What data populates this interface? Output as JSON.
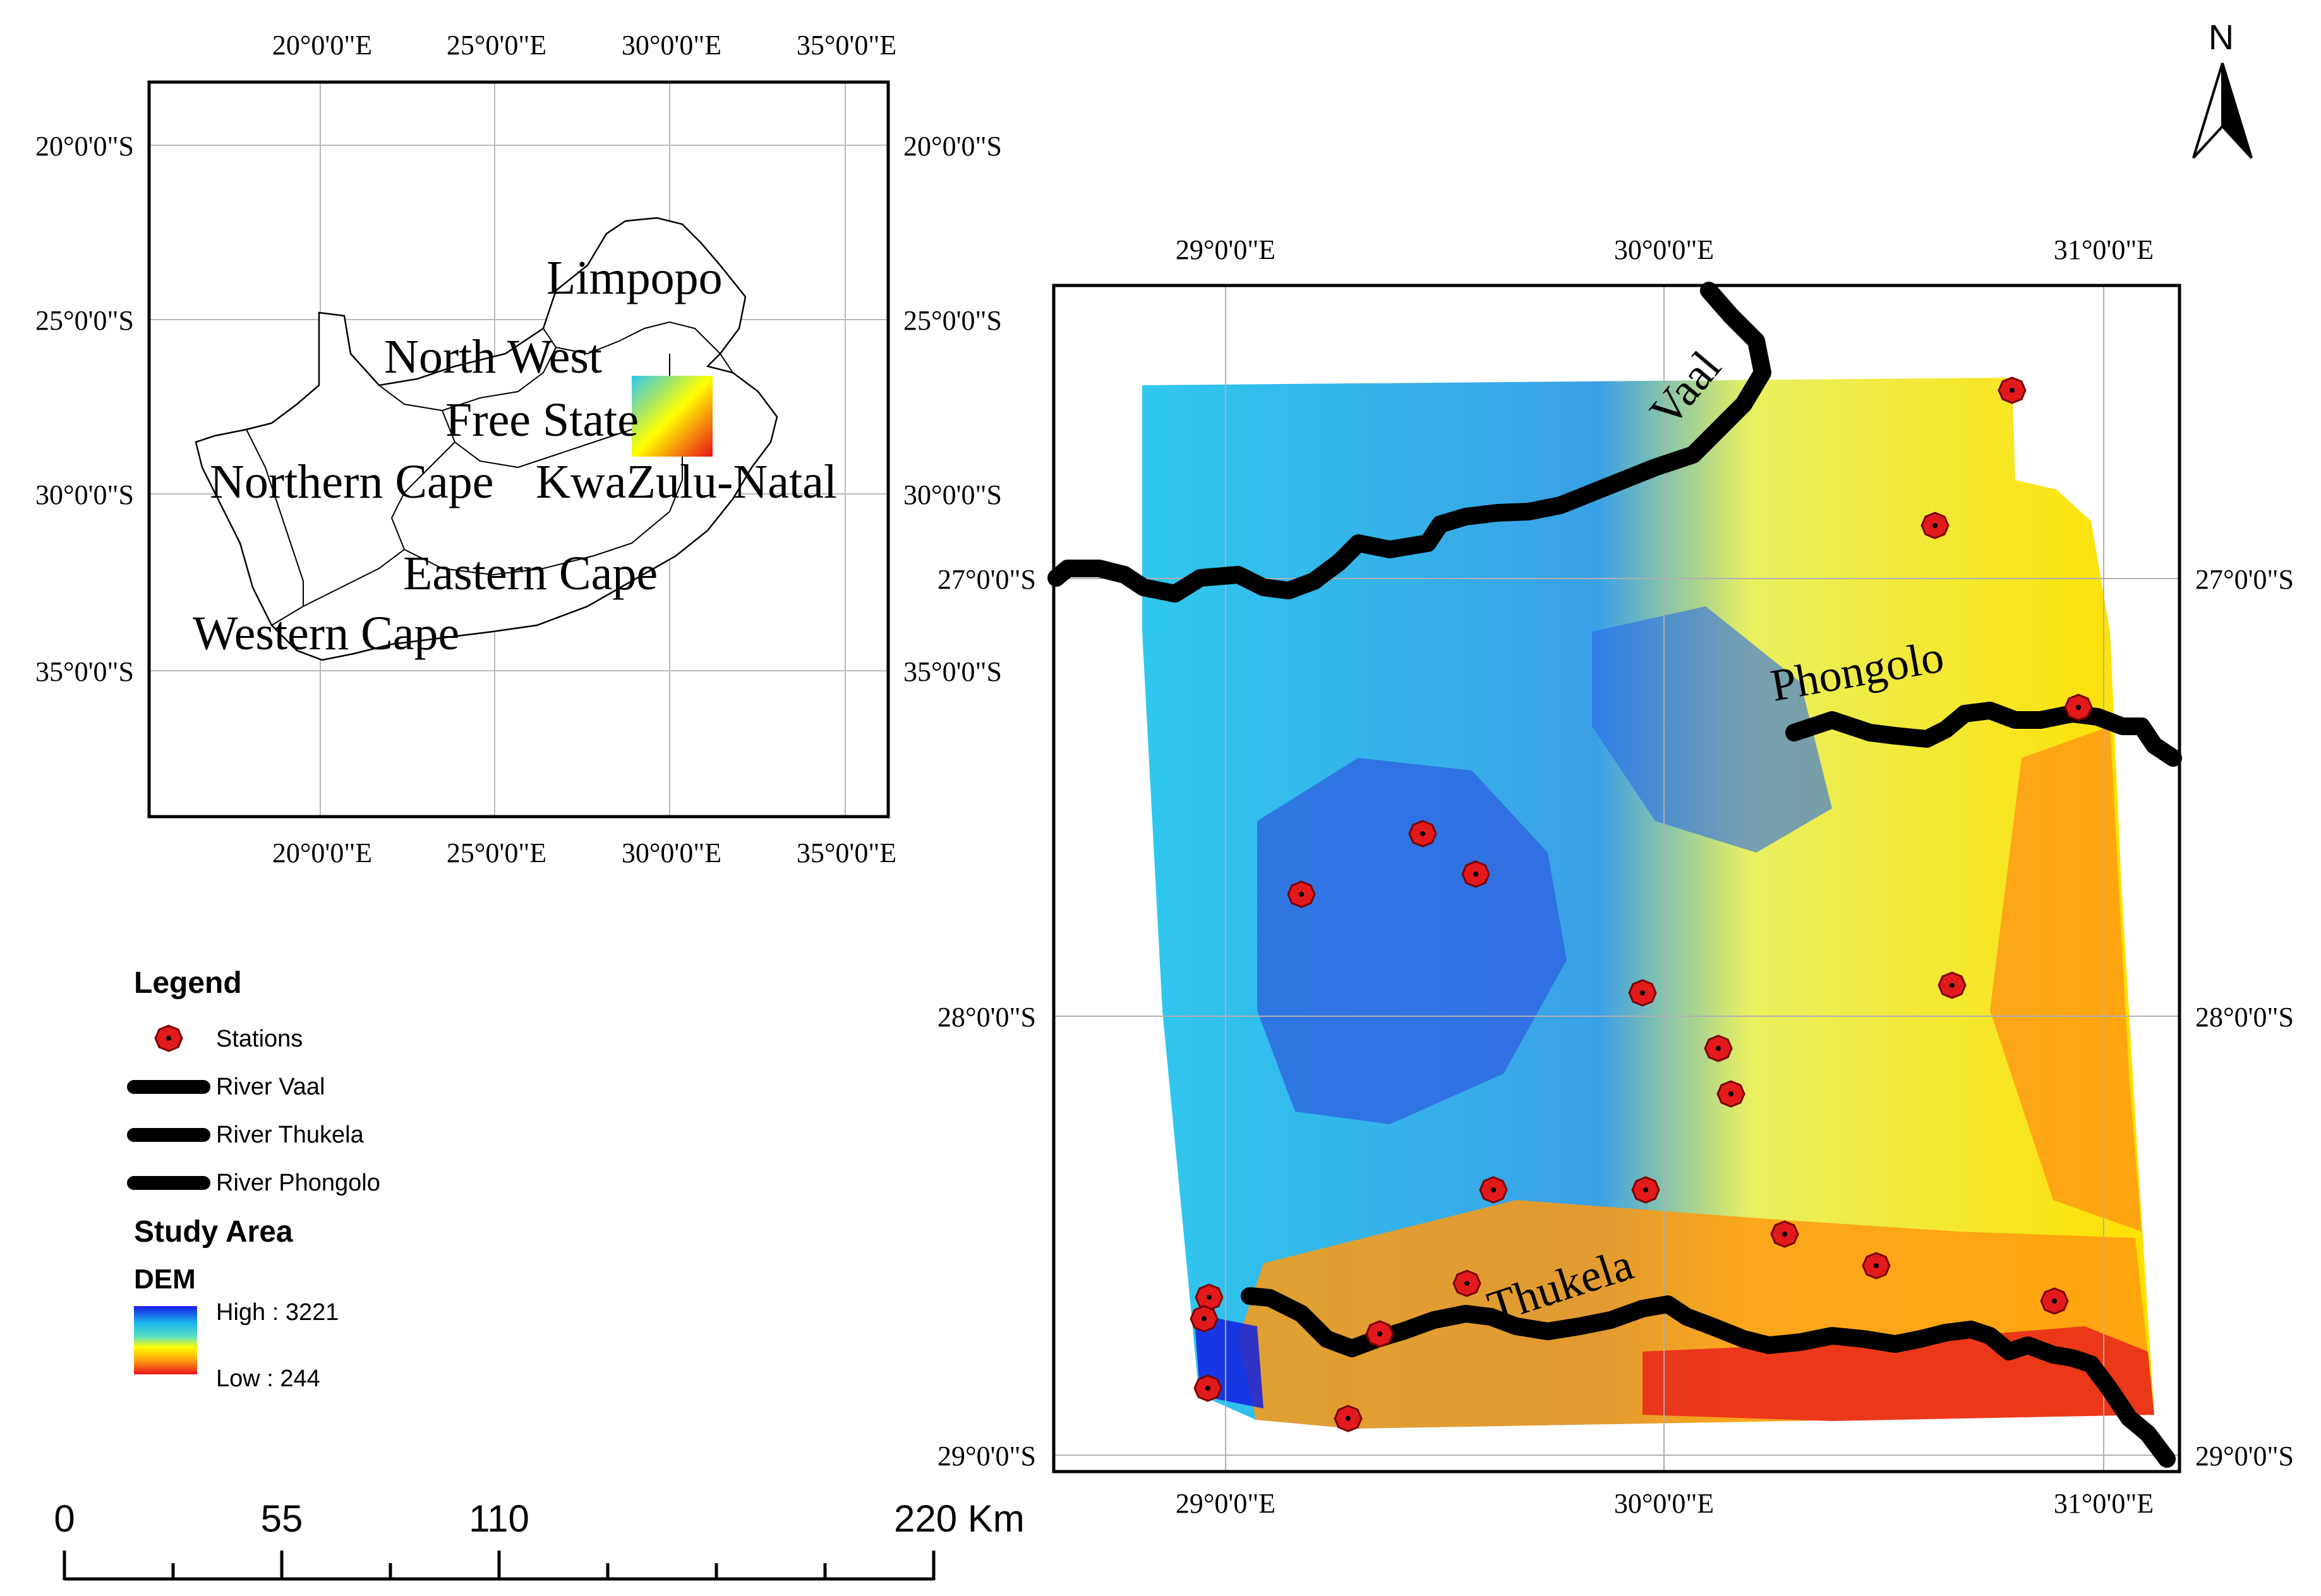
{
  "inset_map": {
    "top_lon_labels": [
      "20°0'0\"E",
      "25°0'0\"E",
      "30°0'0\"E",
      "35°0'0\"E"
    ],
    "bottom_lon_labels": [
      "20°0'0\"E",
      "25°0'0\"E",
      "30°0'0\"E",
      "35°0'0\"E"
    ],
    "left_lat_labels": [
      "20°0'0\"S",
      "25°0'0\"S",
      "30°0'0\"S",
      "35°0'0\"S"
    ],
    "right_lat_labels": [
      "20°0'0\"S",
      "25°0'0\"S",
      "30°0'0\"S",
      "35°0'0\"S"
    ],
    "provinces": [
      "Limpopo",
      "North West",
      "Free State",
      "Northern Cape",
      "KwaZulu-Natal",
      "Eastern Cape",
      "Western Cape"
    ]
  },
  "main_map": {
    "top_lon_labels": [
      "29°0'0\"E",
      "30°0'0\"E",
      "31°0'0\"E"
    ],
    "bottom_lon_labels": [
      "29°0'0\"E",
      "30°0'0\"E",
      "31°0'0\"E"
    ],
    "left_lat_labels": [
      "27°0'0\"S",
      "28°0'0\"S",
      "29°0'0\"S"
    ],
    "right_lat_labels": [
      "27°0'0\"S",
      "28°0'0\"S",
      "29°0'0\"S"
    ],
    "rivers": [
      "Vaal",
      "Phongolo",
      "Thukela"
    ],
    "station_count": 20
  },
  "north_arrow": {
    "label": "N"
  },
  "legend": {
    "title": "Legend",
    "stations_label": "Stations",
    "river_vaal_label": "River Vaal",
    "river_thukela_label": "River Thukela",
    "river_phongolo_label": "River Phongolo",
    "study_area_label": "Study Area",
    "dem_label": "DEM",
    "high_label": "High : 3221",
    "low_label": "Low : 244",
    "colors": {
      "station": "#e31a1c",
      "river": "#000000",
      "dem_high": "#1f2fe0",
      "dem_mid": "#ffff00",
      "dem_low": "#e8101a"
    }
  },
  "scale_bar": {
    "labels": [
      "0",
      "55",
      "110",
      "220 Km"
    ]
  }
}
